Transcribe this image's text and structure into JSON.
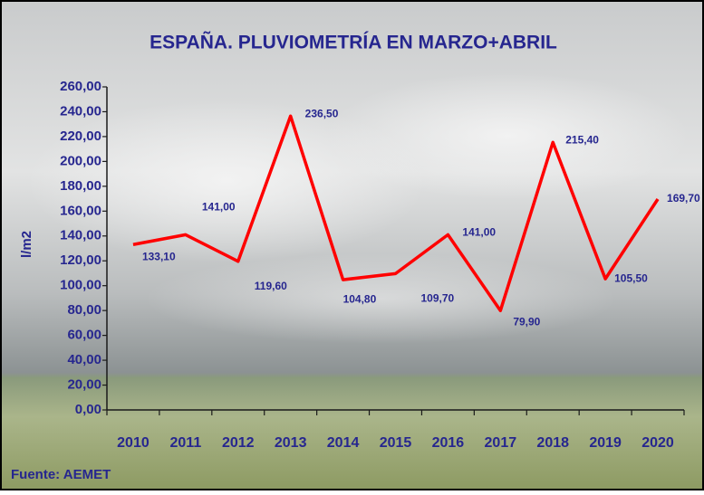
{
  "chart_data": {
    "type": "line",
    "title": "ESPAÑA. PLUVIOMETRÍA EN MARZO+ABRIL",
    "y_label": "l/m2",
    "source": "Fuente: AEMET",
    "categories": [
      "2010",
      "2011",
      "2012",
      "2013",
      "2014",
      "2015",
      "2016",
      "2017",
      "2018",
      "2019",
      "2020"
    ],
    "series": [
      {
        "name": "l/m2",
        "color": "#ff0000",
        "values": [
          133.1,
          141.0,
          119.6,
          236.5,
          104.8,
          109.7,
          141.0,
          79.9,
          215.4,
          105.5,
          169.7
        ],
        "value_labels": [
          "133,10",
          "141,00",
          "119,60",
          "236,50",
          "104,80",
          "109,70",
          "141,00",
          "79,90",
          "215,40",
          "105,50",
          "169,70"
        ]
      }
    ],
    "ylim": [
      0,
      260
    ],
    "yticks": [
      {
        "value": 0,
        "label": "0,00"
      },
      {
        "value": 20,
        "label": "20,00"
      },
      {
        "value": 40,
        "label": "40,00"
      },
      {
        "value": 60,
        "label": "60,00"
      },
      {
        "value": 80,
        "label": "80,00"
      },
      {
        "value": 100,
        "label": "100,00"
      },
      {
        "value": 120,
        "label": "120,00"
      },
      {
        "value": 140,
        "label": "140,00"
      },
      {
        "value": 160,
        "label": "160,00"
      },
      {
        "value": 180,
        "label": "180,00"
      },
      {
        "value": 200,
        "label": "200,00"
      },
      {
        "value": 220,
        "label": "220,00"
      },
      {
        "value": 240,
        "label": "240,00"
      },
      {
        "value": 260,
        "label": "260,00"
      }
    ],
    "text_color": "#26268f"
  }
}
